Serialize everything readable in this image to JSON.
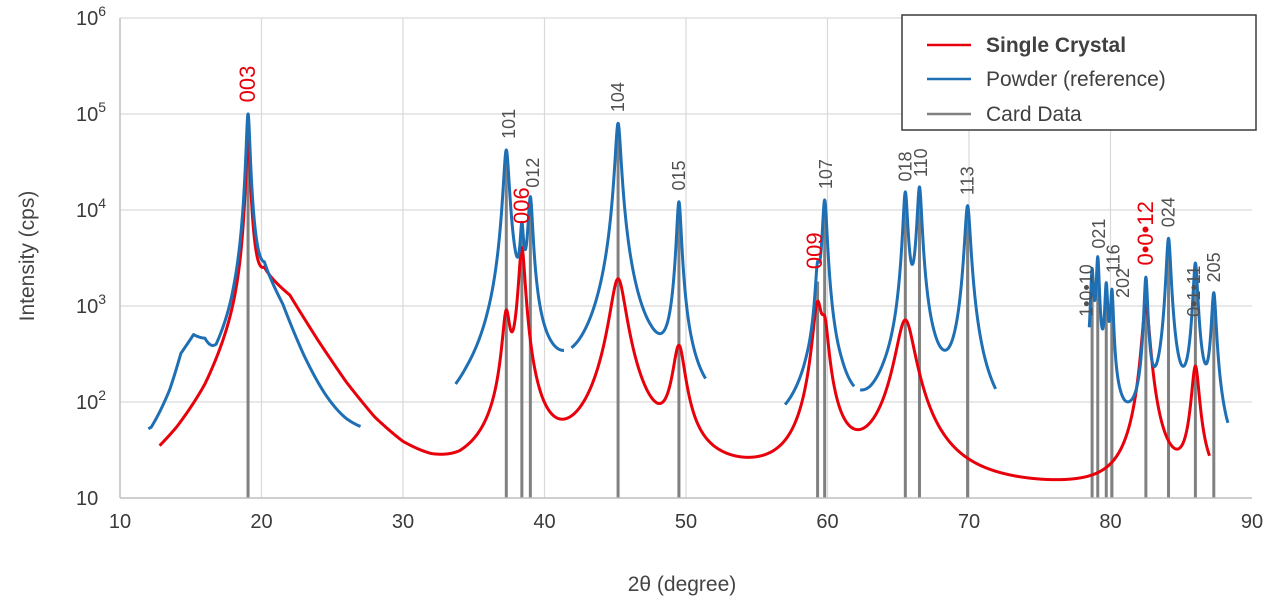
{
  "chart_data": {
    "type": "line",
    "xlabel": "2θ (degree)",
    "ylabel": "Intensity (cps)",
    "xlim": [
      10,
      90
    ],
    "ylim": [
      10,
      1000000
    ],
    "yscale": "log",
    "x_ticks": [
      10,
      20,
      30,
      40,
      50,
      60,
      70,
      80,
      90
    ],
    "y_ticks": [
      {
        "value": 10,
        "base": "10",
        "exp": ""
      },
      {
        "value": 100,
        "base": "10",
        "exp": "2"
      },
      {
        "value": 1000,
        "base": "10",
        "exp": "3"
      },
      {
        "value": 10000,
        "base": "10",
        "exp": "4"
      },
      {
        "value": 100000,
        "base": "10",
        "exp": "5"
      },
      {
        "value": 1000000,
        "base": "10",
        "exp": "6"
      }
    ],
    "grid": true,
    "legend_position": "top-right",
    "legend": [
      {
        "label": "Single Crystal",
        "color": "#e8000b",
        "bold": true
      },
      {
        "label": "Powder (reference)",
        "color": "#1f6fb4",
        "bold": false
      },
      {
        "label": "Card Data",
        "color": "#808080",
        "bold": false
      }
    ],
    "series": [
      {
        "name": "Single Crystal",
        "color": "#e8000b",
        "background": [
          [
            12.8,
            12
          ],
          [
            14,
            20
          ],
          [
            16,
            60
          ],
          [
            18,
            300
          ],
          [
            20.2,
            1900
          ],
          [
            22,
            1200
          ],
          [
            24,
            400
          ],
          [
            26,
            140
          ],
          [
            28,
            55
          ],
          [
            30,
            26
          ],
          [
            32,
            15
          ],
          [
            34,
            10.2
          ]
        ],
        "x_start": 12.8,
        "x_end": 87,
        "peaks": [
          {
            "x": 19.05,
            "h": 60000,
            "w": 0.12
          },
          {
            "x": 37.3,
            "h": 760,
            "w": 0.25
          },
          {
            "x": 38.4,
            "h": 4000,
            "w": 0.2
          },
          {
            "x": 45.2,
            "h": 1900,
            "w": 0.5
          },
          {
            "x": 49.5,
            "h": 350,
            "w": 0.4
          },
          {
            "x": 59.3,
            "h": 1000,
            "w": 0.3
          },
          {
            "x": 59.8,
            "h": 500,
            "w": 0.25
          },
          {
            "x": 65.5,
            "h": 700,
            "w": 0.6
          },
          {
            "x": 82.5,
            "h": 1000,
            "w": 0.25
          },
          {
            "x": 86.0,
            "h": 220,
            "w": 0.25
          }
        ]
      },
      {
        "name": "Powder (reference)",
        "color": "#1f6fb4",
        "background": [
          [
            12.2,
            18
          ],
          [
            13.5,
            80
          ],
          [
            14.3,
            250
          ],
          [
            15.2,
            400
          ],
          [
            16.0,
            300
          ],
          [
            16.8,
            110
          ],
          [
            17.8,
            180
          ],
          [
            20.2,
            1800
          ],
          [
            21.5,
            800
          ],
          [
            23,
            200
          ],
          [
            24.5,
            55
          ],
          [
            26,
            16
          ],
          [
            27,
            8
          ],
          [
            28,
            4
          ],
          [
            33.5,
            4
          ],
          [
            34.5,
            12
          ],
          [
            36,
            25
          ],
          [
            39.5,
            25
          ],
          [
            41,
            16
          ],
          [
            42,
            15
          ],
          [
            43,
            20
          ],
          [
            47.5,
            60
          ],
          [
            49,
            38
          ],
          [
            51,
            12
          ],
          [
            57,
            10
          ],
          [
            58.5,
            35
          ],
          [
            61,
            30
          ],
          [
            62,
            9
          ],
          [
            63,
            9
          ],
          [
            64,
            20
          ],
          [
            67.5,
            40
          ],
          [
            69,
            30
          ],
          [
            71,
            14
          ],
          [
            77,
            14
          ],
          [
            79,
            60
          ],
          [
            81,
            30
          ],
          [
            83,
            28
          ],
          [
            84.5,
            28
          ],
          [
            86,
            45
          ],
          [
            87.5,
            20
          ],
          [
            88.2,
            7
          ]
        ],
        "x_start": 12.0,
        "x_end": 88.3,
        "gaps": [
          [
            27.0,
            33.7
          ],
          [
            41.4,
            41.9
          ],
          [
            51.4,
            57.0
          ],
          [
            61.9,
            62.3
          ],
          [
            71.9,
            78.5
          ]
        ],
        "peaks": [
          {
            "x": 19.05,
            "h": 100000,
            "w": 0.12
          },
          {
            "x": 37.3,
            "h": 42000,
            "w": 0.18
          },
          {
            "x": 38.4,
            "h": 5500,
            "w": 0.12
          },
          {
            "x": 39.0,
            "h": 13000,
            "w": 0.15
          },
          {
            "x": 45.2,
            "h": 80000,
            "w": 0.18
          },
          {
            "x": 49.5,
            "h": 12000,
            "w": 0.15
          },
          {
            "x": 59.3,
            "h": 1800,
            "w": 0.15
          },
          {
            "x": 59.8,
            "h": 12500,
            "w": 0.15
          },
          {
            "x": 65.5,
            "h": 15000,
            "w": 0.15
          },
          {
            "x": 66.5,
            "h": 17000,
            "w": 0.15
          },
          {
            "x": 69.9,
            "h": 11000,
            "w": 0.18
          },
          {
            "x": 78.7,
            "h": 2200,
            "w": 0.1
          },
          {
            "x": 79.1,
            "h": 3000,
            "w": 0.1
          },
          {
            "x": 79.7,
            "h": 1500,
            "w": 0.1
          },
          {
            "x": 80.1,
            "h": 1300,
            "w": 0.1
          },
          {
            "x": 82.5,
            "h": 1900,
            "w": 0.12
          },
          {
            "x": 84.1,
            "h": 5000,
            "w": 0.15
          },
          {
            "x": 86.0,
            "h": 2700,
            "w": 0.15
          },
          {
            "x": 87.3,
            "h": 1300,
            "w": 0.15
          }
        ]
      }
    ],
    "card_data": [
      {
        "x": 19.05,
        "top": 100000
      },
      {
        "x": 37.3,
        "top": 42000
      },
      {
        "x": 38.4,
        "top": 5500
      },
      {
        "x": 39.0,
        "top": 13000
      },
      {
        "x": 45.2,
        "top": 80000
      },
      {
        "x": 49.5,
        "top": 12000
      },
      {
        "x": 59.3,
        "top": 1800
      },
      {
        "x": 59.8,
        "top": 12500
      },
      {
        "x": 65.5,
        "top": 15000
      },
      {
        "x": 66.5,
        "top": 17000
      },
      {
        "x": 69.9,
        "top": 11000
      },
      {
        "x": 78.7,
        "top": 2200
      },
      {
        "x": 79.1,
        "top": 3000
      },
      {
        "x": 79.7,
        "top": 1500
      },
      {
        "x": 80.1,
        "top": 1300
      },
      {
        "x": 82.5,
        "top": 1900
      },
      {
        "x": 84.1,
        "top": 5000
      },
      {
        "x": 86.0,
        "top": 2700
      },
      {
        "x": 87.3,
        "top": 1300
      }
    ],
    "annotations": [
      {
        "text": "003",
        "x": 19.05,
        "y": 120000,
        "color": "red"
      },
      {
        "text": "101",
        "x": 37.5,
        "y": 50000,
        "color": "gray"
      },
      {
        "text": "006",
        "x": 38.4,
        "y": 6500,
        "color": "red"
      },
      {
        "text": "012",
        "x": 39.2,
        "y": 15500,
        "color": "gray"
      },
      {
        "text": "104",
        "x": 45.2,
        "y": 95000,
        "color": "gray"
      },
      {
        "text": "015",
        "x": 49.5,
        "y": 14500,
        "color": "gray"
      },
      {
        "text": "009",
        "x": 59.1,
        "y": 2200,
        "color": "red"
      },
      {
        "text": "107",
        "x": 59.9,
        "y": 15000,
        "color": "gray"
      },
      {
        "text": "018",
        "x": 65.5,
        "y": 18000,
        "color": "gray"
      },
      {
        "text": "110",
        "x": 66.6,
        "y": 20000,
        "color": "gray"
      },
      {
        "text": "113",
        "x": 69.9,
        "y": 13000,
        "color": "gray"
      },
      {
        "text": "1•0•10",
        "x": 78.3,
        "y": 700,
        "color": "gray"
      },
      {
        "text": "021",
        "x": 79.2,
        "y": 3600,
        "color": "gray"
      },
      {
        "text": "116",
        "x": 80.2,
        "y": 2000,
        "color": "gray"
      },
      {
        "text": "202",
        "x": 80.9,
        "y": 1100,
        "color": "gray"
      },
      {
        "text": "0•0•12",
        "x": 82.5,
        "y": 2400,
        "color": "red"
      },
      {
        "text": "024",
        "x": 84.1,
        "y": 6000,
        "color": "gray"
      },
      {
        "text": "0•1•11",
        "x": 85.9,
        "y": 700,
        "color": "gray"
      },
      {
        "text": "205",
        "x": 87.3,
        "y": 1600,
        "color": "gray"
      }
    ]
  }
}
